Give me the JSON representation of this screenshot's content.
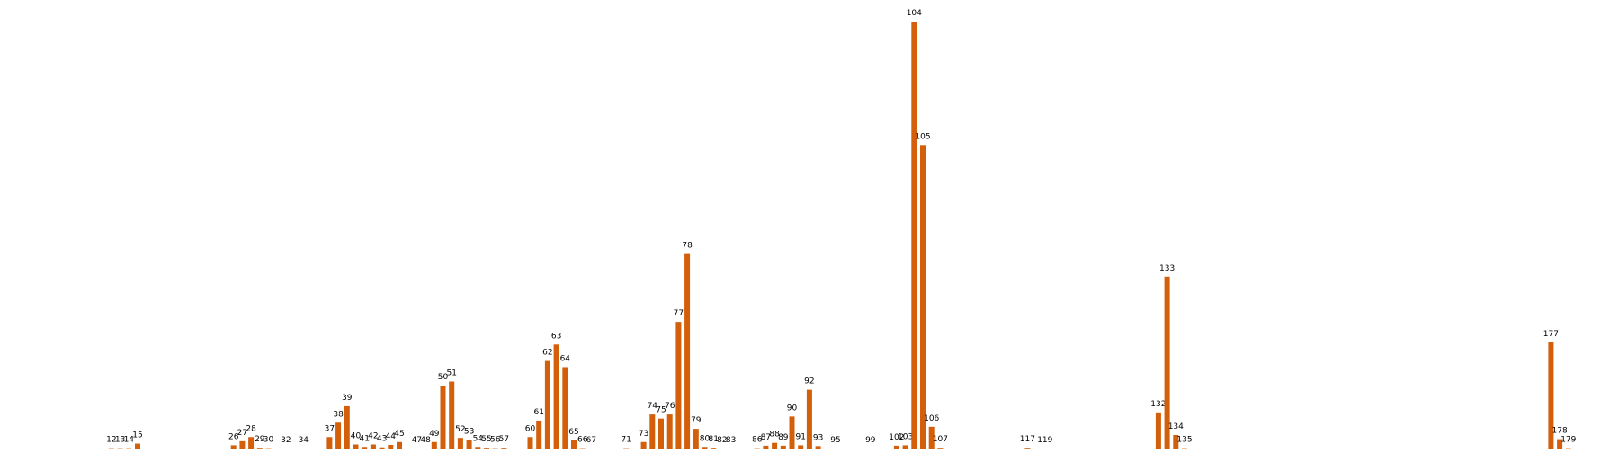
{
  "chart_data": {
    "type": "bar",
    "title": "",
    "xlabel": "",
    "ylabel": "",
    "grid": false,
    "axes_visible": false,
    "bar_color": "#d35f0a",
    "xlim": [
      0,
      180
    ],
    "ylim": [
      0,
      104
    ],
    "data_labels": [
      "12",
      "13",
      "14",
      "15",
      "26",
      "27",
      "28",
      "29",
      "30",
      "32",
      "34",
      "37",
      "38",
      "39",
      "40",
      "41",
      "42",
      "43",
      "44",
      "45",
      "47",
      "48",
      "49",
      "50",
      "51",
      "52",
      "53",
      "54",
      "55",
      "56",
      "57",
      "60",
      "61",
      "62",
      "63",
      "64",
      "65",
      "66",
      "67",
      "71",
      "73",
      "74",
      "75",
      "76",
      "77",
      "78",
      "79",
      "80",
      "81",
      "82",
      "83",
      "86",
      "87",
      "88",
      "89",
      "90",
      "91",
      "92",
      "93",
      "95",
      "99",
      "102",
      "103",
      "104",
      "105",
      "106",
      "107",
      "117",
      "119",
      "132",
      "133",
      "134",
      "135",
      "177",
      "178",
      "179"
    ],
    "x": [
      12,
      13,
      14,
      15,
      26,
      27,
      28,
      29,
      30,
      32,
      34,
      37,
      38,
      39,
      40,
      41,
      42,
      43,
      44,
      45,
      47,
      48,
      49,
      50,
      51,
      52,
      53,
      54,
      55,
      56,
      57,
      60,
      61,
      62,
      63,
      64,
      65,
      66,
      67,
      71,
      73,
      74,
      75,
      76,
      77,
      78,
      79,
      80,
      81,
      82,
      83,
      86,
      87,
      88,
      89,
      90,
      91,
      92,
      93,
      95,
      99,
      102,
      103,
      104,
      105,
      106,
      107,
      117,
      119,
      132,
      133,
      134,
      135,
      177,
      178,
      179
    ],
    "values": [
      0.3,
      0.3,
      0.3,
      1.4,
      1.0,
      2.0,
      3.0,
      0.4,
      0.3,
      0.2,
      0.1,
      3.0,
      6.5,
      10.5,
      1.2,
      0.6,
      1.2,
      0.5,
      1.1,
      1.8,
      0.1,
      0.1,
      1.8,
      15.5,
      16.5,
      2.8,
      2.3,
      0.6,
      0.4,
      0.3,
      0.4,
      3.0,
      7.0,
      21.5,
      25.5,
      20.0,
      2.2,
      0.3,
      0.1,
      0.3,
      1.8,
      8.5,
      7.5,
      8.5,
      31.0,
      47.5,
      5.0,
      0.6,
      0.4,
      0.1,
      0.1,
      0.3,
      0.9,
      1.6,
      0.9,
      8.0,
      1.0,
      14.5,
      0.8,
      0.1,
      0.1,
      0.9,
      1.0,
      104.0,
      74.0,
      5.5,
      0.4,
      0.4,
      0.1,
      9.0,
      42.0,
      3.5,
      0.3,
      26.0,
      2.5,
      0.3
    ]
  }
}
